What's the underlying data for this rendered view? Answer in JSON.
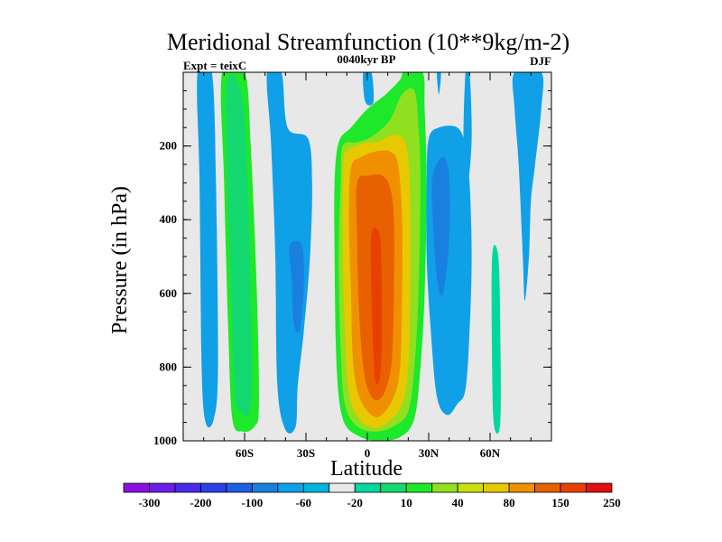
{
  "chart_data": {
    "type": "contour",
    "title": "Meridional Streamfunction (10**9kg/m-2)",
    "left_label": "Expt = teixC",
    "center_label": "0040kyr BP",
    "right_label": "DJF",
    "xlabel": "Latitude",
    "ylabel": "Pressure (in hPa)",
    "xlim": [
      -90,
      90
    ],
    "ylim": [
      1000,
      0
    ],
    "x_ticks": [
      {
        "value": -60,
        "label": "60S"
      },
      {
        "value": -30,
        "label": "30S"
      },
      {
        "value": 0,
        "label": "0"
      },
      {
        "value": 30,
        "label": "30N"
      },
      {
        "value": 60,
        "label": "60N"
      }
    ],
    "y_ticks": [
      {
        "value": 200,
        "label": "200"
      },
      {
        "value": 400,
        "label": "400"
      },
      {
        "value": 600,
        "label": "600"
      },
      {
        "value": 800,
        "label": "800"
      },
      {
        "value": 1000,
        "label": "1000"
      }
    ],
    "background_color": "#e8e8e8",
    "colorbar": {
      "colors": [
        "#8a10e0",
        "#6a1ee8",
        "#4a2ae8",
        "#2d3fe6",
        "#1f5fe0",
        "#1a80e0",
        "#10a0e8",
        "#00b4e0",
        "#e8e8e8",
        "#00d8a0",
        "#14d870",
        "#1ee82a",
        "#90e020",
        "#c8e010",
        "#e8c800",
        "#f09000",
        "#e86000",
        "#e84000",
        "#e01010"
      ],
      "labels": [
        "-300",
        "-200",
        "-100",
        "-60",
        "-20",
        "10",
        "40",
        "80",
        "150",
        "250"
      ]
    },
    "regions": [
      {
        "name": "cell-far-south",
        "level": -20,
        "color": "#10a0e8",
        "bounds": [
          [
            -83,
            0
          ],
          [
            -76,
            0
          ],
          [
            -74,
            300
          ],
          [
            -73,
            800
          ],
          [
            -75,
            940
          ],
          [
            -79,
            950
          ],
          [
            -81,
            800
          ],
          [
            -82,
            300
          ]
        ]
      },
      {
        "name": "cell-south-green",
        "level": 10,
        "color": "#1ee82a",
        "bounds": [
          [
            -71,
            0
          ],
          [
            -60,
            0
          ],
          [
            -57,
            200
          ],
          [
            -54,
            600
          ],
          [
            -53,
            900
          ],
          [
            -55,
            960
          ],
          [
            -61,
            975
          ],
          [
            -66,
            940
          ],
          [
            -68,
            700
          ],
          [
            -70,
            300
          ]
        ]
      },
      {
        "name": "cell-south-green-inner",
        "level": 40,
        "color": "#14d870",
        "bounds": [
          [
            -69,
            50
          ],
          [
            -62,
            50
          ],
          [
            -59,
            250
          ],
          [
            -57,
            600
          ],
          [
            -57,
            900
          ],
          [
            -62,
            920
          ],
          [
            -65,
            850
          ],
          [
            -67,
            500
          ]
        ]
      },
      {
        "name": "cell-midsouth-blue",
        "level": -20,
        "color": "#10a0e8",
        "bounds": [
          [
            -49,
            0
          ],
          [
            -42,
            0
          ],
          [
            -39,
            150
          ],
          [
            -29,
            180
          ],
          [
            -27,
            300
          ],
          [
            -28,
            500
          ],
          [
            -31,
            700
          ],
          [
            -34,
            850
          ],
          [
            -35,
            960
          ],
          [
            -40,
            970
          ],
          [
            -44,
            850
          ],
          [
            -45,
            500
          ],
          [
            -47,
            200
          ]
        ]
      },
      {
        "name": "cell-midsouth-blue-inner",
        "level": -60,
        "color": "#1a80e0",
        "bounds": [
          [
            -38,
            470
          ],
          [
            -32,
            470
          ],
          [
            -31,
            580
          ],
          [
            -33,
            700
          ],
          [
            -36,
            680
          ],
          [
            -37,
            560
          ]
        ]
      },
      {
        "name": "cell-tropic-blue-strip",
        "level": -20,
        "color": "#10a0e8",
        "bounds": [
          [
            -2,
            0
          ],
          [
            2,
            0
          ],
          [
            3,
            80
          ],
          [
            -1,
            80
          ]
        ]
      },
      {
        "name": "cell-hadley-10",
        "level": 10,
        "color": "#1ee82a",
        "bounds": [
          [
            -14,
            190
          ],
          [
            -8,
            150
          ],
          [
            0,
            100
          ],
          [
            9,
            60
          ],
          [
            16,
            20
          ],
          [
            18,
            0
          ],
          [
            27,
            0
          ],
          [
            28,
            100
          ],
          [
            29,
            300
          ],
          [
            28,
            600
          ],
          [
            26,
            800
          ],
          [
            23,
            940
          ],
          [
            16,
            990
          ],
          [
            5,
            1000
          ],
          [
            -5,
            985
          ],
          [
            -12,
            940
          ],
          [
            -15,
            800
          ],
          [
            -16,
            500
          ],
          [
            -16,
            300
          ]
        ]
      },
      {
        "name": "cell-hadley-40",
        "level": 40,
        "color": "#90e020",
        "bounds": [
          [
            -12,
            200
          ],
          [
            -5,
            190
          ],
          [
            2,
            175
          ],
          [
            11,
            130
          ],
          [
            17,
            60
          ],
          [
            23,
            50
          ],
          [
            25,
            150
          ],
          [
            26,
            300
          ],
          [
            25,
            600
          ],
          [
            23,
            800
          ],
          [
            20,
            920
          ],
          [
            13,
            960
          ],
          [
            4,
            975
          ],
          [
            -5,
            960
          ],
          [
            -11,
            900
          ],
          [
            -13,
            750
          ],
          [
            -14,
            500
          ],
          [
            -13,
            300
          ]
        ]
      },
      {
        "name": "cell-hadley-80",
        "level": 80,
        "color": "#e8c800",
        "bounds": [
          [
            -11,
            220
          ],
          [
            -5,
            200
          ],
          [
            0,
            190
          ],
          [
            5,
            190
          ],
          [
            13,
            170
          ],
          [
            19,
            200
          ],
          [
            21,
            350
          ],
          [
            21,
            600
          ],
          [
            20,
            800
          ],
          [
            17,
            900
          ],
          [
            10,
            950
          ],
          [
            3,
            965
          ],
          [
            -4,
            940
          ],
          [
            -9,
            870
          ],
          [
            -11,
            700
          ],
          [
            -12,
            500
          ],
          [
            -12,
            300
          ]
        ]
      },
      {
        "name": "cell-hadley-150",
        "level": 150,
        "color": "#f09000",
        "bounds": [
          [
            -8,
            260
          ],
          [
            -3,
            230
          ],
          [
            4,
            215
          ],
          [
            11,
            215
          ],
          [
            15,
            250
          ],
          [
            17,
            400
          ],
          [
            17,
            600
          ],
          [
            16,
            800
          ],
          [
            13,
            880
          ],
          [
            7,
            930
          ],
          [
            2,
            930
          ],
          [
            -4,
            880
          ],
          [
            -7,
            780
          ],
          [
            -8,
            600
          ],
          [
            -9,
            400
          ]
        ]
      },
      {
        "name": "cell-hadley-250",
        "level": 250,
        "color": "#e86000",
        "bounds": [
          [
            -5,
            300
          ],
          [
            1,
            280
          ],
          [
            7,
            280
          ],
          [
            11,
            310
          ],
          [
            13,
            400
          ],
          [
            13,
            600
          ],
          [
            12,
            780
          ],
          [
            9,
            860
          ],
          [
            5,
            890
          ],
          [
            1,
            870
          ],
          [
            -2,
            800
          ],
          [
            -4,
            650
          ],
          [
            -5,
            450
          ]
        ]
      },
      {
        "name": "cell-hadley-core",
        "level": 300,
        "color": "#e84000",
        "bounds": [
          [
            2,
            440
          ],
          [
            6,
            440
          ],
          [
            7,
            560
          ],
          [
            7,
            750
          ],
          [
            6,
            830
          ],
          [
            4,
            840
          ],
          [
            3,
            760
          ],
          [
            2,
            600
          ]
        ]
      },
      {
        "name": "cell-north-blue",
        "level": -20,
        "color": "#10a0e8",
        "bounds": [
          [
            30,
            180
          ],
          [
            35,
            150
          ],
          [
            44,
            150
          ],
          [
            48,
            200
          ],
          [
            50,
            300
          ],
          [
            51,
            500
          ],
          [
            50,
            700
          ],
          [
            48,
            860
          ],
          [
            44,
            900
          ],
          [
            39,
            930
          ],
          [
            34,
            880
          ],
          [
            31,
            700
          ],
          [
            29,
            500
          ],
          [
            29,
            300
          ]
        ]
      },
      {
        "name": "cell-north-blue-inner",
        "level": -60,
        "color": "#1a80e0",
        "bounds": [
          [
            32,
            280
          ],
          [
            37,
            230
          ],
          [
            40,
            280
          ],
          [
            40,
            450
          ],
          [
            37,
            600
          ],
          [
            34,
            560
          ],
          [
            32,
            400
          ]
        ]
      },
      {
        "name": "cell-north-top-strip",
        "level": -20,
        "color": "#10a0e8",
        "bounds": [
          [
            34,
            0
          ],
          [
            36,
            0
          ],
          [
            35,
            60
          ]
        ]
      },
      {
        "name": "cell-north-strip",
        "level": -20,
        "color": "#10a0e8",
        "bounds": [
          [
            48,
            0
          ],
          [
            50,
            0
          ],
          [
            51,
            180
          ],
          [
            49,
            300
          ],
          [
            47,
            200
          ]
        ]
      },
      {
        "name": "cell-north-green",
        "level": 10,
        "color": "#00d8a0",
        "bounds": [
          [
            61,
            500
          ],
          [
            64,
            500
          ],
          [
            65,
            700
          ],
          [
            65,
            950
          ],
          [
            62,
            960
          ],
          [
            61,
            800
          ]
        ]
      },
      {
        "name": "cell-far-north",
        "level": -20,
        "color": "#10a0e8",
        "bounds": [
          [
            72,
            0
          ],
          [
            85,
            0
          ],
          [
            85,
            100
          ],
          [
            82,
            250
          ],
          [
            80,
            350
          ],
          [
            79,
            500
          ],
          [
            77,
            620
          ],
          [
            76,
            500
          ],
          [
            74,
            250
          ],
          [
            72,
            100
          ]
        ]
      }
    ]
  }
}
